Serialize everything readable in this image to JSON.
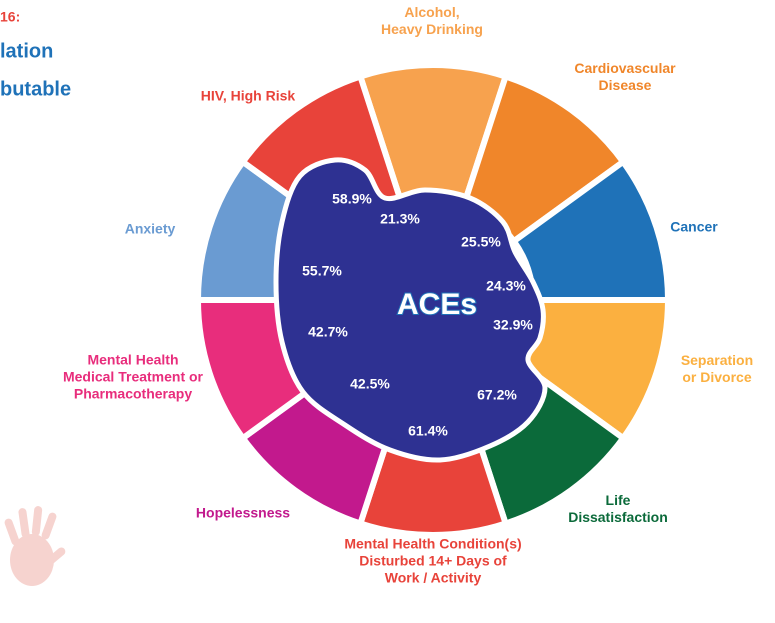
{
  "header": {
    "lines": [
      "16:",
      "lation",
      "butable"
    ]
  },
  "center": "ACEs",
  "nodes": [
    {
      "label": [
        "Alcohol,",
        "Heavy Drinking"
      ],
      "value": "21.3%",
      "color": "#f7a24e"
    },
    {
      "label": [
        "Cardiovascular",
        "Disease"
      ],
      "value": "25.5%",
      "color": "#f0862a"
    },
    {
      "label": [
        "Cancer"
      ],
      "value": "24.3%",
      "color": "#1f72b8"
    },
    {
      "label": [
        "Separation",
        "or Divorce"
      ],
      "value": "32.9%",
      "color": "#fbb040"
    },
    {
      "label": [
        "Life",
        "Dissatisfaction"
      ],
      "value": "67.2%",
      "color": "#0b6a3a"
    },
    {
      "label": [
        "Mental Health Condition(s)",
        "Disturbed 14+ Days of",
        "Work / Activity"
      ],
      "value": "61.4%",
      "color": "#e8433a"
    },
    {
      "label": [
        "Hopelessness"
      ],
      "value": "42.5%",
      "color": "#c2198d"
    },
    {
      "label": [
        "Mental Health",
        "Medical Treatment or",
        "Pharmacotherapy"
      ],
      "value": "42.7%",
      "color": "#e82d7c"
    },
    {
      "label": [
        "Anxiety"
      ],
      "value": "55.7%",
      "color": "#6a9bd2"
    },
    {
      "label": [
        "HIV, High Risk"
      ],
      "value": "58.9%",
      "color": "#e8433a"
    }
  ]
}
